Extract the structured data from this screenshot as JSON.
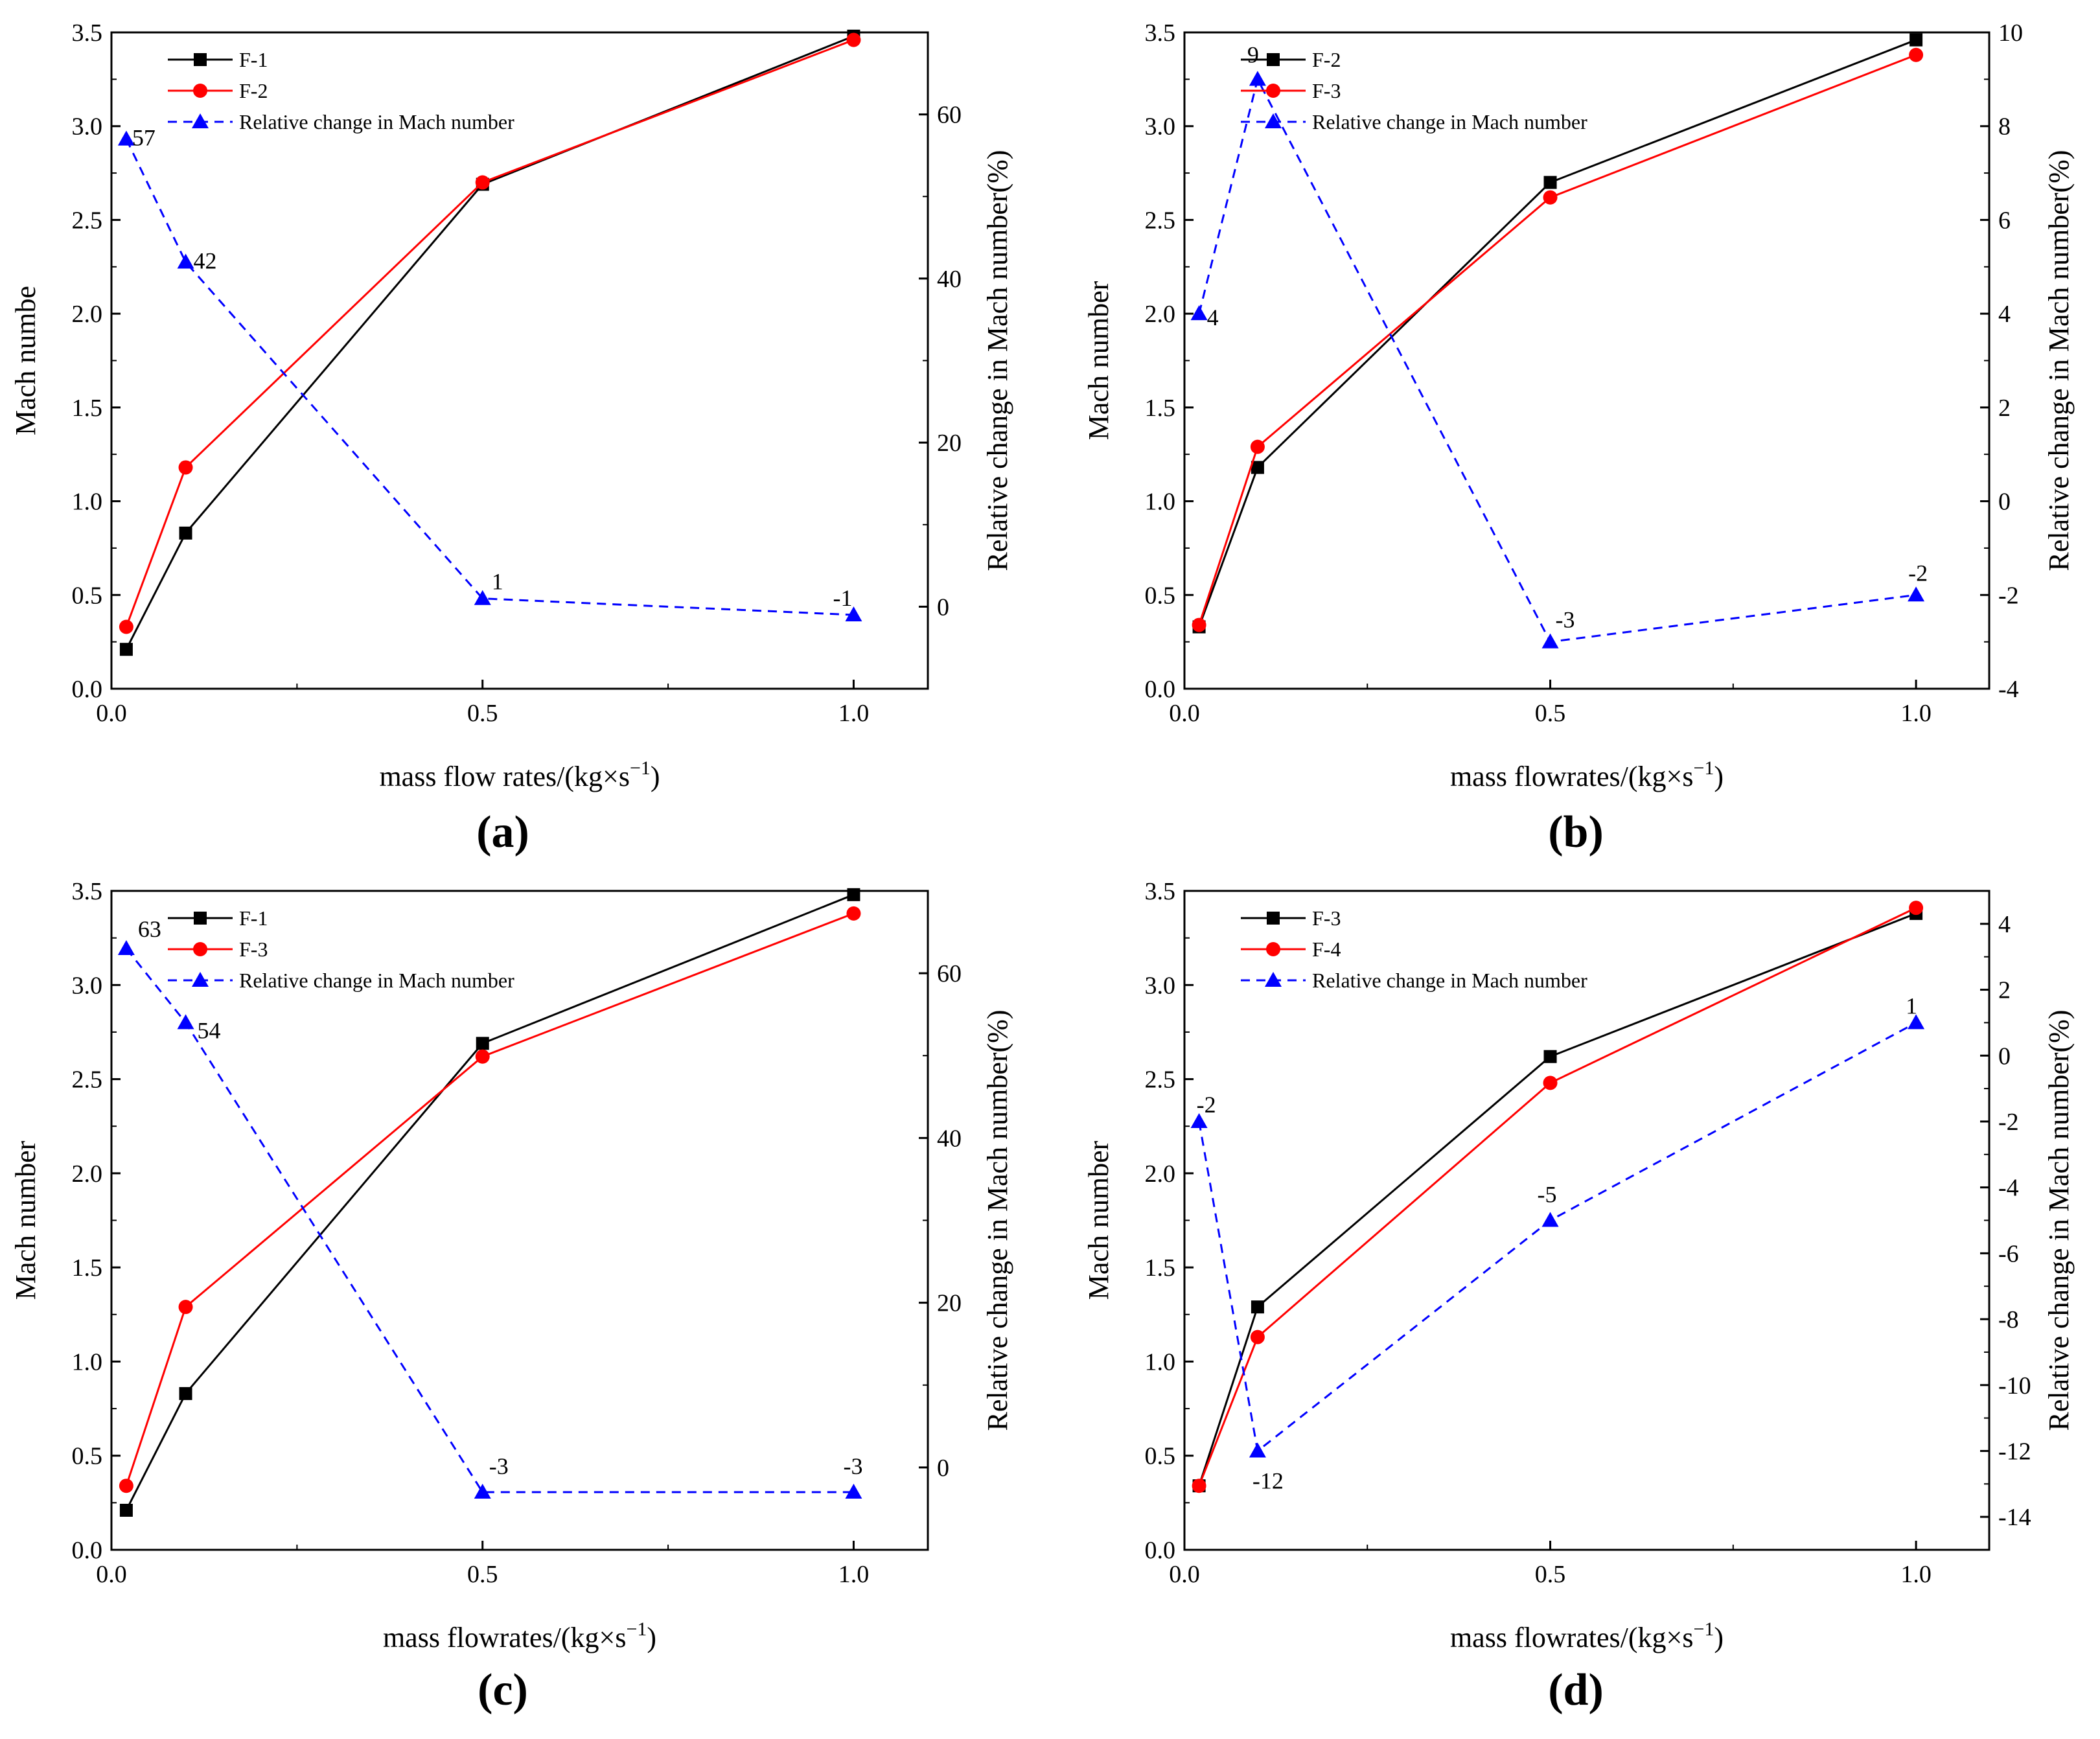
{
  "chart_data": [
    {
      "type": "line",
      "panel_label": "(a)",
      "xlabel": "mass flow rates/(kg×s",
      "xlabel_sup": "−1",
      "xlabel_close": ")",
      "ylabel": "Mach numbe",
      "y2label": "Relative change in Mach number(%)",
      "xlim": [
        0,
        1.1
      ],
      "ylim": [
        0,
        3.5
      ],
      "y2lim": [
        -10,
        70
      ],
      "xticks": [
        "0.0",
        "0.5",
        "1.0"
      ],
      "yticks": [
        "0.0",
        "0.5",
        "1.0",
        "1.5",
        "2.0",
        "2.5",
        "3.0",
        "3.5"
      ],
      "y2ticks": [
        "0",
        "20",
        "40",
        "60"
      ],
      "x": [
        0.02,
        0.1,
        0.5,
        1.0
      ],
      "series": [
        {
          "name": "F-1",
          "axis": "left",
          "color": "#000000",
          "marker": "square",
          "dash": false,
          "values": [
            0.21,
            0.83,
            2.69,
            3.48
          ]
        },
        {
          "name": "F-2",
          "axis": "left",
          "color": "#ff0000",
          "marker": "circle",
          "dash": false,
          "values": [
            0.33,
            1.18,
            2.7,
            3.46
          ]
        },
        {
          "name": "Relative change in Mach number",
          "axis": "right",
          "color": "#0000ff",
          "marker": "triangle",
          "dash": true,
          "values": [
            57,
            42,
            1,
            -1
          ]
        }
      ],
      "point_labels": [
        "57",
        "42",
        "1",
        "-1"
      ]
    },
    {
      "type": "line",
      "panel_label": "(b)",
      "xlabel": "mass flowrates/(kg×s",
      "xlabel_sup": "−1",
      "xlabel_close": ")",
      "ylabel": "Mach number",
      "y2label": "Relative change in Mach number(%)",
      "xlim": [
        0,
        1.1
      ],
      "ylim": [
        0,
        3.5
      ],
      "y2lim": [
        -4,
        10
      ],
      "xticks": [
        "0.0",
        "0.5",
        "1.0"
      ],
      "yticks": [
        "0.0",
        "0.5",
        "1.0",
        "1.5",
        "2.0",
        "2.5",
        "3.0",
        "3.5"
      ],
      "y2ticks": [
        "-4",
        "-2",
        "0",
        "2",
        "4",
        "6",
        "8",
        "10"
      ],
      "x": [
        0.02,
        0.1,
        0.5,
        1.0
      ],
      "series": [
        {
          "name": "F-2",
          "axis": "left",
          "color": "#000000",
          "marker": "square",
          "dash": false,
          "values": [
            0.33,
            1.18,
            2.7,
            3.46
          ]
        },
        {
          "name": "F-3",
          "axis": "left",
          "color": "#ff0000",
          "marker": "circle",
          "dash": false,
          "values": [
            0.34,
            1.29,
            2.62,
            3.38
          ]
        },
        {
          "name": "Relative change in Mach number",
          "axis": "right",
          "color": "#0000ff",
          "marker": "triangle",
          "dash": true,
          "values": [
            4,
            9,
            -3,
            -2
          ]
        }
      ],
      "point_labels": [
        "4",
        "9",
        "-3",
        "-2"
      ]
    },
    {
      "type": "line",
      "panel_label": "(c)",
      "xlabel": "mass flowrates/(kg×s",
      "xlabel_sup": "−1",
      "xlabel_close": ")",
      "ylabel": "Mach number",
      "y2label": "Relative change in Mach number(%)",
      "xlim": [
        0,
        1.1
      ],
      "ylim": [
        0,
        3.5
      ],
      "y2lim": [
        -10,
        70
      ],
      "xticks": [
        "0.0",
        "0.5",
        "1.0"
      ],
      "yticks": [
        "0.0",
        "0.5",
        "1.0",
        "1.5",
        "2.0",
        "2.5",
        "3.0",
        "3.5"
      ],
      "y2ticks": [
        "0",
        "20",
        "40",
        "60"
      ],
      "x": [
        0.02,
        0.1,
        0.5,
        1.0
      ],
      "series": [
        {
          "name": "F-1",
          "axis": "left",
          "color": "#000000",
          "marker": "square",
          "dash": false,
          "values": [
            0.21,
            0.83,
            2.69,
            3.48
          ]
        },
        {
          "name": "F-3",
          "axis": "left",
          "color": "#ff0000",
          "marker": "circle",
          "dash": false,
          "values": [
            0.34,
            1.29,
            2.62,
            3.38
          ]
        },
        {
          "name": "Relative change in Mach number",
          "axis": "right",
          "color": "#0000ff",
          "marker": "triangle",
          "dash": true,
          "values": [
            63,
            54,
            -3,
            -3
          ]
        }
      ],
      "point_labels": [
        "63",
        "54",
        "-3",
        "-3"
      ]
    },
    {
      "type": "line",
      "panel_label": "(d)",
      "xlabel": "mass flowrates/(kg×s",
      "xlabel_sup": "−1",
      "xlabel_close": ")",
      "ylabel": "Mach number",
      "y2label": "Relative change in Mach number(%)",
      "xlim": [
        0,
        1.1
      ],
      "ylim": [
        0,
        3.5
      ],
      "y2lim": [
        -15,
        5
      ],
      "xticks": [
        "0.0",
        "0.5",
        "1.0"
      ],
      "yticks": [
        "0.0",
        "0.5",
        "1.0",
        "1.5",
        "2.0",
        "2.5",
        "3.0",
        "3.5"
      ],
      "y2ticks": [
        "-14",
        "-12",
        "-10",
        "-8",
        "-6",
        "-4",
        "-2",
        "0",
        "2",
        "4"
      ],
      "x": [
        0.02,
        0.1,
        0.5,
        1.0
      ],
      "series": [
        {
          "name": "F-3",
          "axis": "left",
          "color": "#000000",
          "marker": "square",
          "dash": false,
          "values": [
            0.34,
            1.29,
            2.62,
            3.38
          ]
        },
        {
          "name": "F-4",
          "axis": "left",
          "color": "#ff0000",
          "marker": "circle",
          "dash": false,
          "values": [
            0.34,
            1.13,
            2.48,
            3.41
          ]
        },
        {
          "name": "Relative change in Mach number",
          "axis": "right",
          "color": "#0000ff",
          "marker": "triangle",
          "dash": true,
          "values": [
            -2,
            -12,
            -5,
            1
          ]
        }
      ],
      "point_labels": [
        "-2",
        "-12",
        "-5",
        "1"
      ]
    }
  ]
}
